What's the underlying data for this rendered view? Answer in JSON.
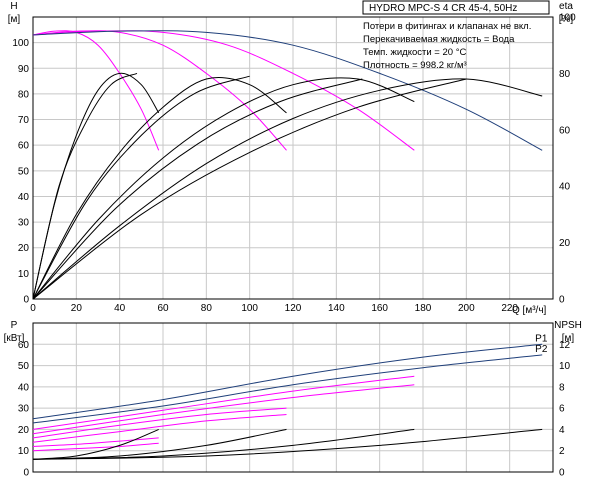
{
  "title": "HYDRO MPC-S 4 CR 45-4, 50Hz",
  "notes": [
    "Потери в фитингах и клапанах не вкл.",
    "Перекачиваемая жидкость = Вода",
    "Темп. жидкости = 20 °C",
    "Плотность = 998.2 кг/м³"
  ],
  "colors": {
    "head": "#ff00ff",
    "perf": "#1f3f7a",
    "eff": "#000000",
    "grid": "#c8c8c8"
  },
  "chart_data": [
    {
      "type": "line",
      "id": "upper",
      "xlabel": "Q [м³/ч]",
      "ylabel_left": [
        "H",
        "[м]"
      ],
      "ylabel_right": [
        "eta",
        "[%]"
      ],
      "xlim": [
        0,
        240
      ],
      "ylim": [
        0,
        110
      ],
      "right_ylim": [
        0,
        100
      ],
      "x_ticks": [
        0,
        20,
        40,
        60,
        80,
        100,
        120,
        140,
        160,
        180,
        200,
        220
      ],
      "y_ticks": [
        0,
        10,
        20,
        30,
        40,
        50,
        60,
        70,
        80,
        90,
        100
      ],
      "right_ticks": [
        0,
        20,
        40,
        60,
        80,
        100
      ],
      "series": [
        {
          "kind": "head",
          "x": [
            0,
            10,
            20,
            30,
            40,
            50,
            58
          ],
          "y": [
            103,
            104.5,
            104,
            99,
            88,
            74,
            58
          ]
        },
        {
          "kind": "head",
          "x": [
            0,
            20,
            40,
            60,
            80,
            100,
            117
          ],
          "y": [
            103,
            104.5,
            104,
            99,
            88,
            74,
            58
          ]
        },
        {
          "kind": "head",
          "x": [
            0,
            30,
            60,
            90,
            120,
            150,
            176
          ],
          "y": [
            103,
            104.5,
            104,
            99,
            88,
            74,
            58
          ]
        },
        {
          "kind": "perf",
          "x": [
            0,
            40,
            80,
            120,
            160,
            200,
            235
          ],
          "y": [
            103,
            104.5,
            104,
            99,
            88,
            74,
            58
          ]
        },
        {
          "kind": "eta",
          "x": [
            0,
            10,
            20,
            30,
            40,
            50,
            58
          ],
          "y": [
            0,
            34,
            58,
            74,
            80,
            76,
            66
          ]
        },
        {
          "kind": "eta",
          "x": [
            0,
            20,
            40,
            60,
            80,
            100,
            117
          ],
          "y": [
            0,
            30,
            52,
            68,
            78,
            76,
            66
          ]
        },
        {
          "kind": "eta",
          "x": [
            0,
            30,
            60,
            90,
            120,
            150,
            176
          ],
          "y": [
            0,
            28,
            50,
            66,
            76,
            78,
            70
          ]
        },
        {
          "kind": "eta",
          "x": [
            0,
            40,
            80,
            120,
            160,
            200,
            235
          ],
          "y": [
            0,
            26,
            48,
            64,
            74,
            78,
            72
          ]
        },
        {
          "kind": "eta",
          "x": [
            0,
            12,
            24,
            36,
            48
          ],
          "y": [
            0,
            40,
            62,
            76,
            80
          ]
        },
        {
          "kind": "eta",
          "x": [
            0,
            25,
            50,
            75,
            100
          ],
          "y": [
            0,
            35,
            58,
            73,
            79
          ]
        },
        {
          "kind": "eta",
          "x": [
            0,
            38,
            76,
            114,
            152
          ],
          "y": [
            0,
            32,
            55,
            70,
            78
          ]
        },
        {
          "kind": "eta",
          "x": [
            0,
            50,
            100,
            150,
            200
          ],
          "y": [
            0,
            30,
            52,
            68,
            78
          ]
        }
      ]
    },
    {
      "type": "line",
      "id": "lower",
      "ylabel_left": [
        "P",
        "[кВт]"
      ],
      "ylabel_right": [
        "NPSH",
        "[м]"
      ],
      "xlim": [
        0,
        240
      ],
      "ylim": [
        0,
        70
      ],
      "right_ylim": [
        0,
        14
      ],
      "y_ticks": [
        0,
        10,
        20,
        30,
        40,
        50,
        60
      ],
      "right_ticks": [
        0,
        2,
        4,
        6,
        8,
        10,
        12
      ],
      "series": [
        {
          "kind": "perf",
          "name": "P1",
          "x": [
            0,
            60,
            120,
            180,
            235
          ],
          "y": [
            25,
            34,
            45,
            54,
            60
          ]
        },
        {
          "kind": "perf",
          "name": "P2",
          "x": [
            0,
            60,
            120,
            180,
            235
          ],
          "y": [
            23,
            31,
            41,
            49,
            55
          ]
        },
        {
          "kind": "head",
          "x": [
            0,
            60,
            120,
            176
          ],
          "y": [
            20,
            29,
            38,
            45
          ]
        },
        {
          "kind": "head",
          "x": [
            0,
            60,
            120,
            176
          ],
          "y": [
            18,
            27,
            35,
            41
          ]
        },
        {
          "kind": "head",
          "x": [
            0,
            40,
            80,
            117
          ],
          "y": [
            16,
            22,
            27,
            30
          ]
        },
        {
          "kind": "head",
          "x": [
            0,
            40,
            80,
            117
          ],
          "y": [
            14,
            19,
            24,
            27
          ]
        },
        {
          "kind": "head",
          "x": [
            0,
            20,
            40,
            58
          ],
          "y": [
            12,
            13,
            14.5,
            16
          ]
        },
        {
          "kind": "head",
          "x": [
            0,
            20,
            40,
            58
          ],
          "y": [
            10,
            11,
            12,
            13.5
          ]
        },
        {
          "kind": "npsh",
          "x": [
            0,
            20,
            40,
            58
          ],
          "y": [
            1.2,
            1.5,
            2.5,
            4
          ]
        },
        {
          "kind": "npsh",
          "x": [
            0,
            40,
            80,
            117
          ],
          "y": [
            1.2,
            1.5,
            2.5,
            4
          ]
        },
        {
          "kind": "npsh",
          "x": [
            0,
            60,
            120,
            176
          ],
          "y": [
            1.2,
            1.5,
            2.5,
            4
          ]
        },
        {
          "kind": "npsh",
          "x": [
            0,
            80,
            160,
            235
          ],
          "y": [
            1.2,
            1.5,
            2.5,
            4
          ]
        }
      ]
    }
  ]
}
